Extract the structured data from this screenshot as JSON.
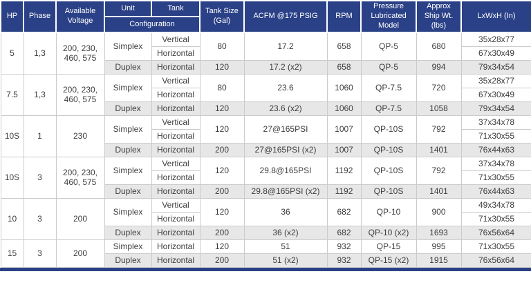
{
  "colors": {
    "header_bg": "#2b4187",
    "shaded_row": "#e7e7e7",
    "header_text": "#ffffff",
    "body_text": "#3d3d3d"
  },
  "table": {
    "header": {
      "rows": [
        {
          "cells": [
            {
              "t": "HP",
              "rs": 2,
              "name": "col-header-hp"
            },
            {
              "t": "Phase",
              "rs": 2,
              "name": "col-header-phase"
            },
            {
              "t": "Available\nVoltage",
              "rs": 2,
              "name": "col-header-available-voltage"
            },
            {
              "t": "Unit",
              "name": "col-header-unit"
            },
            {
              "t": "Tank",
              "name": "col-header-tank"
            },
            {
              "t": "Tank Size\n(Gal)",
              "rs": 2,
              "name": "col-header-tank-size"
            },
            {
              "t": "ACFM @175 PSIG",
              "rs": 2,
              "name": "col-header-acfm"
            },
            {
              "t": "RPM",
              "rs": 2,
              "name": "col-header-rpm"
            },
            {
              "t": "Pressure\nLubricated\nModel",
              "rs": 2,
              "name": "col-header-model"
            },
            {
              "t": "Approx\nShip Wt.\n(lbs)",
              "rs": 2,
              "name": "col-header-ship-weight"
            },
            {
              "t": "LxWxH (In)",
              "rs": 2,
              "name": "col-header-dimensions"
            }
          ]
        },
        {
          "cells": [
            {
              "t": "Configuration",
              "cs": 2,
              "name": "col-header-configuration"
            }
          ]
        }
      ]
    },
    "body": {
      "rows": [
        {
          "shaded": false,
          "cells": [
            {
              "t": "5",
              "rs": 3
            },
            {
              "t": "1,3",
              "rs": 3
            },
            {
              "t": "200, 230,\n460, 575",
              "rs": 3
            },
            {
              "t": "Simplex",
              "rs": 2
            },
            {
              "t": "Vertical"
            },
            {
              "t": "80",
              "rs": 2
            },
            {
              "t": "17.2",
              "rs": 2
            },
            {
              "t": "658",
              "rs": 2
            },
            {
              "t": "QP-5",
              "rs": 2
            },
            {
              "t": "680",
              "rs": 2
            },
            {
              "t": "35x28x77"
            }
          ]
        },
        {
          "shaded": false,
          "cells": [
            {
              "t": "Horizontal"
            },
            {
              "t": "67x30x49"
            }
          ]
        },
        {
          "shaded": true,
          "cells": [
            {
              "t": "Duplex"
            },
            {
              "t": "Horizontal"
            },
            {
              "t": "120"
            },
            {
              "t": "17.2 (x2)"
            },
            {
              "t": "658"
            },
            {
              "t": "QP-5"
            },
            {
              "t": "994"
            },
            {
              "t": "79x34x54"
            }
          ]
        },
        {
          "shaded": false,
          "cells": [
            {
              "t": "7.5",
              "rs": 3
            },
            {
              "t": "1,3",
              "rs": 3
            },
            {
              "t": "200, 230,\n460, 575",
              "rs": 3
            },
            {
              "t": "Simplex",
              "rs": 2
            },
            {
              "t": "Vertical"
            },
            {
              "t": "80",
              "rs": 2
            },
            {
              "t": "23.6",
              "rs": 2
            },
            {
              "t": "1060",
              "rs": 2
            },
            {
              "t": "QP-7.5",
              "rs": 2
            },
            {
              "t": "720",
              "rs": 2
            },
            {
              "t": "35x28x77"
            }
          ]
        },
        {
          "shaded": false,
          "cells": [
            {
              "t": "Horizontal"
            },
            {
              "t": "67x30x49"
            }
          ]
        },
        {
          "shaded": true,
          "cells": [
            {
              "t": "Duplex"
            },
            {
              "t": "Horizontal"
            },
            {
              "t": "120"
            },
            {
              "t": "23.6 (x2)"
            },
            {
              "t": "1060"
            },
            {
              "t": "QP-7.5"
            },
            {
              "t": "1058"
            },
            {
              "t": "79x34x54"
            }
          ]
        },
        {
          "shaded": false,
          "cells": [
            {
              "t": "10S",
              "rs": 3
            },
            {
              "t": "1",
              "rs": 3
            },
            {
              "t": "230",
              "rs": 3
            },
            {
              "t": "Simplex",
              "rs": 2
            },
            {
              "t": "Vertical"
            },
            {
              "t": "120",
              "rs": 2
            },
            {
              "t": "27@165PSI",
              "rs": 2
            },
            {
              "t": "1007",
              "rs": 2
            },
            {
              "t": "QP-10S",
              "rs": 2
            },
            {
              "t": "792",
              "rs": 2
            },
            {
              "t": "37x34x78"
            }
          ]
        },
        {
          "shaded": false,
          "cells": [
            {
              "t": "Horizontal"
            },
            {
              "t": "71x30x55"
            }
          ]
        },
        {
          "shaded": true,
          "cells": [
            {
              "t": "Duplex"
            },
            {
              "t": "Horizontal"
            },
            {
              "t": "200"
            },
            {
              "t": "27@165PSI (x2)"
            },
            {
              "t": "1007"
            },
            {
              "t": "QP-10S"
            },
            {
              "t": "1401"
            },
            {
              "t": "76x44x63"
            }
          ]
        },
        {
          "shaded": false,
          "cells": [
            {
              "t": "10S",
              "rs": 3
            },
            {
              "t": "3",
              "rs": 3
            },
            {
              "t": "200, 230,\n460, 575",
              "rs": 3
            },
            {
              "t": "Simplex",
              "rs": 2
            },
            {
              "t": "Vertical"
            },
            {
              "t": "120",
              "rs": 2
            },
            {
              "t": "29.8@165PSI",
              "rs": 2
            },
            {
              "t": "1192",
              "rs": 2
            },
            {
              "t": "QP-10S",
              "rs": 2
            },
            {
              "t": "792",
              "rs": 2
            },
            {
              "t": "37x34x78"
            }
          ]
        },
        {
          "shaded": false,
          "cells": [
            {
              "t": "Horizontal"
            },
            {
              "t": "71x30x55"
            }
          ]
        },
        {
          "shaded": true,
          "cells": [
            {
              "t": "Duplex"
            },
            {
              "t": "Horizontal"
            },
            {
              "t": "200"
            },
            {
              "t": "29.8@165PSI (x2)"
            },
            {
              "t": "1192"
            },
            {
              "t": "QP-10S"
            },
            {
              "t": "1401"
            },
            {
              "t": "76x44x63"
            }
          ]
        },
        {
          "shaded": false,
          "cells": [
            {
              "t": "10",
              "rs": 3
            },
            {
              "t": "3",
              "rs": 3
            },
            {
              "t": "200",
              "rs": 3
            },
            {
              "t": "Simplex",
              "rs": 2
            },
            {
              "t": "Vertical"
            },
            {
              "t": "120",
              "rs": 2
            },
            {
              "t": "36",
              "rs": 2
            },
            {
              "t": "682",
              "rs": 2
            },
            {
              "t": "QP-10",
              "rs": 2
            },
            {
              "t": "900",
              "rs": 2
            },
            {
              "t": "49x34x78"
            }
          ]
        },
        {
          "shaded": false,
          "cells": [
            {
              "t": "Horizontal"
            },
            {
              "t": "71x30x55"
            }
          ]
        },
        {
          "shaded": true,
          "cells": [
            {
              "t": "Duplex"
            },
            {
              "t": "Horizontal"
            },
            {
              "t": "200"
            },
            {
              "t": "36 (x2)"
            },
            {
              "t": "682"
            },
            {
              "t": "QP-10 (x2)"
            },
            {
              "t": "1693"
            },
            {
              "t": "76x56x64"
            }
          ]
        },
        {
          "shaded": false,
          "cells": [
            {
              "t": "15",
              "rs": 2
            },
            {
              "t": "3",
              "rs": 2
            },
            {
              "t": "200",
              "rs": 2
            },
            {
              "t": "Simplex"
            },
            {
              "t": "Horizontal"
            },
            {
              "t": "120"
            },
            {
              "t": "51"
            },
            {
              "t": "932"
            },
            {
              "t": "QP-15"
            },
            {
              "t": "995"
            },
            {
              "t": "71x30x55"
            }
          ]
        },
        {
          "shaded": true,
          "cells": [
            {
              "t": "Duplex"
            },
            {
              "t": "Horizontal"
            },
            {
              "t": "200"
            },
            {
              "t": "51 (x2)"
            },
            {
              "t": "932"
            },
            {
              "t": "QP-15 (x2)"
            },
            {
              "t": "1915"
            },
            {
              "t": "76x56x64"
            }
          ]
        }
      ]
    }
  }
}
